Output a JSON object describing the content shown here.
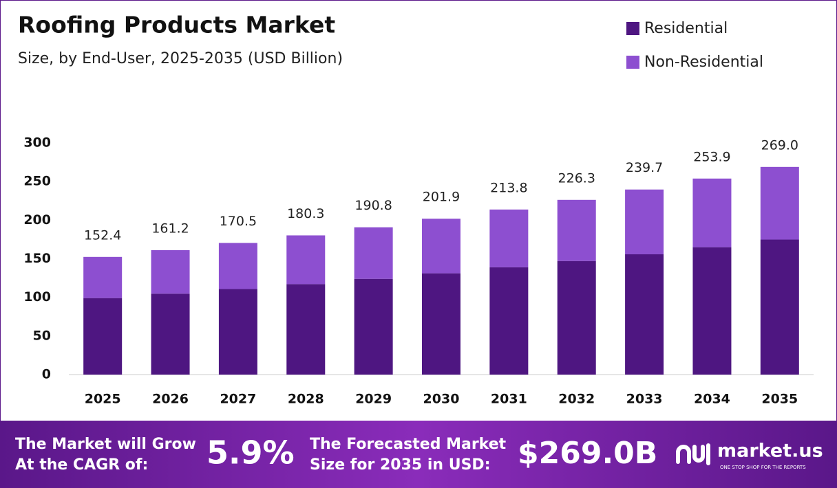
{
  "chart_data": {
    "type": "bar",
    "stacked": true,
    "title": "Roofing Products Market",
    "subtitle": "Size, by End-User, 2025-2035 (USD Billion)",
    "categories": [
      "2025",
      "2026",
      "2027",
      "2028",
      "2029",
      "2030",
      "2031",
      "2032",
      "2033",
      "2034",
      "2035"
    ],
    "series": [
      {
        "name": "Residential",
        "color": "#4e1681",
        "values": [
          99.1,
          104.8,
          110.8,
          117.2,
          124.0,
          131.2,
          139.0,
          147.1,
          155.8,
          165.0,
          174.9
        ]
      },
      {
        "name": "Non-Residential",
        "color": "#8d4fd0",
        "values": [
          53.3,
          56.4,
          59.7,
          63.1,
          66.8,
          70.7,
          74.8,
          79.2,
          83.9,
          88.9,
          94.1
        ]
      }
    ],
    "totals": [
      152.4,
      161.2,
      170.5,
      180.3,
      190.8,
      201.9,
      213.8,
      226.3,
      239.7,
      253.9,
      269.0
    ],
    "value_labels": [
      "152.4",
      "161.2",
      "170.5",
      "180.3",
      "190.8",
      "201.9",
      "213.8",
      "226.3",
      "239.7",
      "253.9",
      "269.0"
    ],
    "ylim": [
      0,
      300
    ],
    "yticks": [
      0,
      50,
      100,
      150,
      200,
      250,
      300
    ],
    "grid": false,
    "legend": "top-right"
  },
  "footer": {
    "cagr_text": [
      "The Market will Grow",
      "At the CAGR of:"
    ],
    "cagr_value": "5.9%",
    "forecast_text": [
      "The Forecasted Market",
      "Size for 2035 in USD:"
    ],
    "forecast_value": "$269.0B",
    "brand": "market.us",
    "tagline": "ONE STOP SHOP FOR THE REPORTS"
  }
}
